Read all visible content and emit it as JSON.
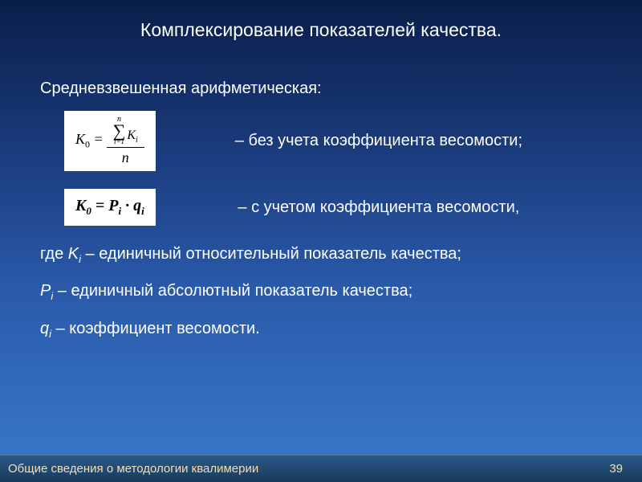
{
  "title": "Комплексирование показателей качества.",
  "subtitle": "Средневзвешенная арифметическая:",
  "formula1": {
    "lhs": "K",
    "lhs_sub": "0",
    "sum_upper": "n",
    "sum_lower": "i=1",
    "sum_term": "K",
    "sum_term_sub": "i",
    "denom": "n",
    "desc": "– без учета коэффициента весомости;"
  },
  "formula2": {
    "text_k": "K",
    "text_k_sub": "0",
    "eq": " = ",
    "p": "P",
    "p_sub": "i",
    "dot": " · ",
    "q": "q",
    "q_sub": "i",
    "desc": "– с учетом коэффициента весомости,"
  },
  "defs": {
    "d1_pre": "где ",
    "d1_sym": "K",
    "d1_sub": "i",
    "d1_txt": " – единичный относительный показатель качества;",
    "d2_sym": "P",
    "d2_sub": "i",
    "d2_txt": " – единичный абсолютный показатель качества;",
    "d3_sym": "q",
    "d3_sub": "i",
    "d3_txt": " – коэффициент весомости."
  },
  "footer": {
    "text": "Общие сведения о методологии квалимерии",
    "page": "39"
  }
}
